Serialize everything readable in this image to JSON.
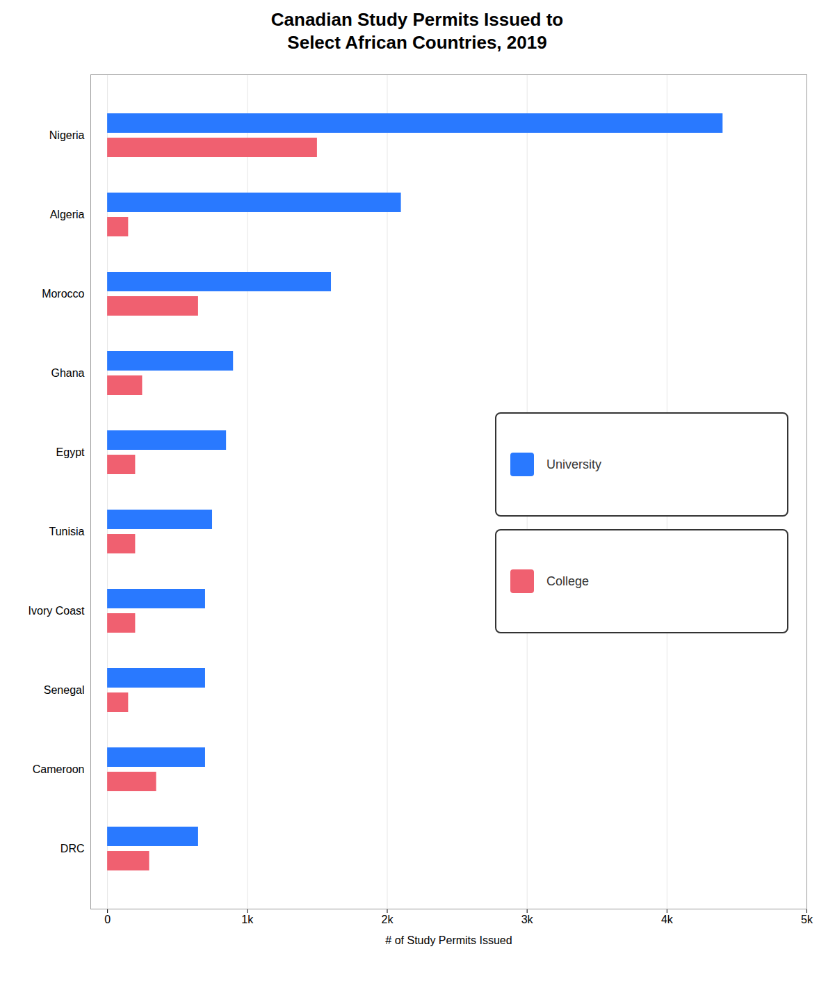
{
  "chart_data": {
    "type": "bar",
    "orientation": "horizontal",
    "title": "Canadian Study Permits Issued to\nSelect African Countries, 2019",
    "xlabel": "# of Study Permits Issued",
    "categories": [
      "Nigeria",
      "Algeria",
      "Morocco",
      "Ghana",
      "Egypt",
      "Tunisia",
      "Ivory Coast",
      "Senegal",
      "Cameroon",
      "DRC"
    ],
    "series": [
      {
        "name": "University",
        "color": "#2979FF",
        "values": [
          4400,
          2100,
          1600,
          900,
          850,
          750,
          700,
          700,
          700,
          650
        ]
      },
      {
        "name": "College",
        "color": "#F06070",
        "values": [
          1500,
          150,
          650,
          250,
          200,
          200,
          200,
          150,
          350,
          300
        ]
      }
    ],
    "xlim": [
      -120,
      5000
    ],
    "xticks": [
      0,
      {
        "value": 1000,
        "label": "1k"
      },
      {
        "value": 2000,
        "label": "2k"
      },
      {
        "value": 3000,
        "label": "3k"
      },
      {
        "value": 4000,
        "label": "4k"
      },
      {
        "value": 5000,
        "label": "5k"
      }
    ],
    "grid": true,
    "legend": "right"
  }
}
